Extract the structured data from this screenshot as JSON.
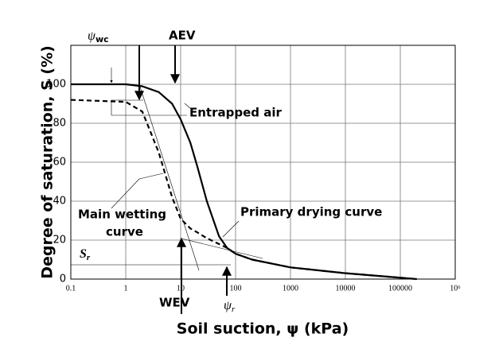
{
  "chart_data": {
    "type": "line",
    "x_label": "Soil suction, ψ (kPa)",
    "y_label": "Degree of saturation, S (%)",
    "xscale": "log",
    "xlim": [
      0.1,
      1000000
    ],
    "ylim": [
      0,
      120
    ],
    "xticks": [
      0.1,
      1,
      10,
      100,
      1000,
      10000,
      100000,
      {
        "value": 1000000,
        "label": "10⁶"
      }
    ],
    "yticks": [
      0,
      20,
      40,
      60,
      80,
      100
    ],
    "grid": true,
    "x": [
      0.1,
      1,
      2,
      4,
      7,
      10,
      15,
      20,
      30,
      50,
      70,
      100,
      200,
      1000,
      10000,
      200000
    ],
    "series": [
      {
        "name": "Primary drying curve",
        "color": "#000000",
        "dash": "solid",
        "values": [
          100,
          100,
          99,
          96,
          90,
          82,
          70,
          58,
          40,
          22,
          16,
          13,
          10,
          6,
          3,
          0
        ]
      },
      {
        "name": "Main wetting curve",
        "color": "#000000",
        "dash": "dashed",
        "values": [
          92,
          91,
          86,
          65,
          42,
          31,
          26,
          24,
          21,
          18,
          16,
          13,
          10,
          6,
          3,
          0
        ]
      }
    ],
    "annotations": {
      "aev": "AEV",
      "psi_wc": {
        "symbol": "ψ",
        "subscript": "wc"
      },
      "entrapped": "Entrapped air",
      "drying": "Primary drying curve",
      "wetting": [
        "Main wetting",
        "curve"
      ],
      "wev": "WEV",
      "psi_r": {
        "symbol": "ψ",
        "subscript": "r"
      },
      "sr": {
        "symbol": "S",
        "subscript": "r"
      }
    }
  }
}
